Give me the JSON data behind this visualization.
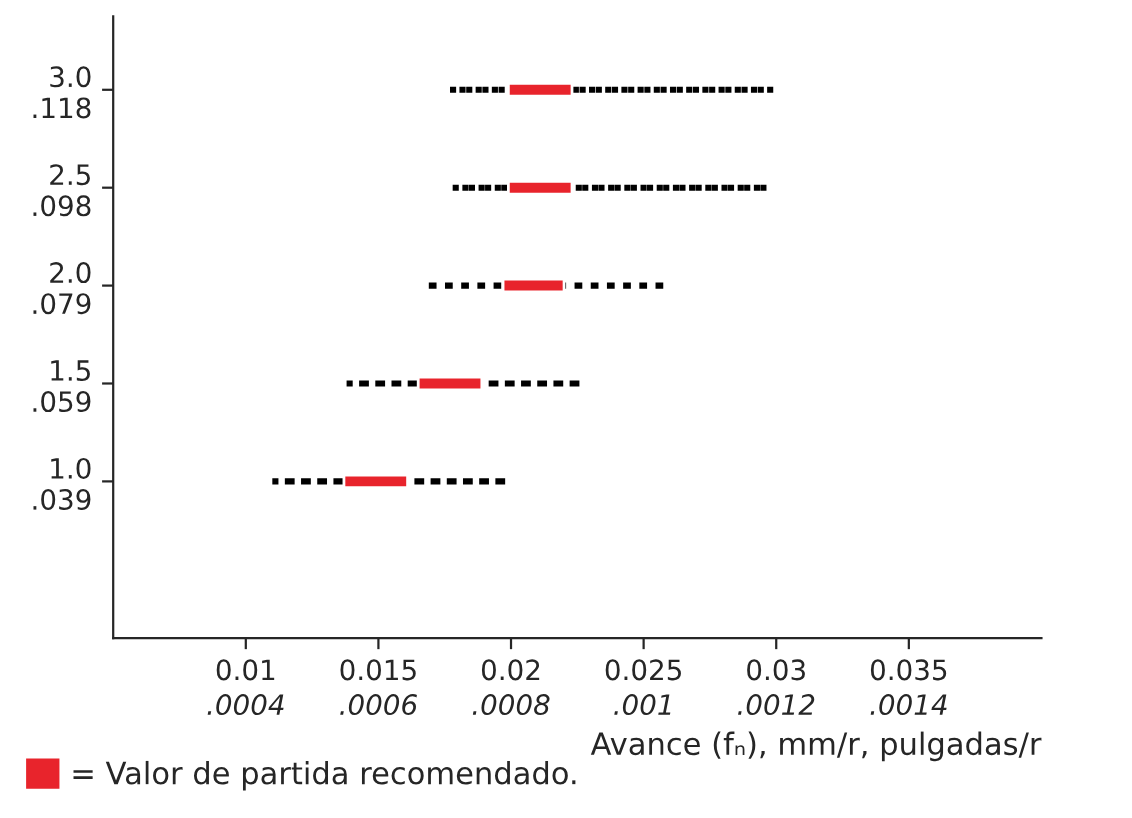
{
  "chart_data": {
    "type": "bar",
    "orientation": "horizontal",
    "categories": [
      "3.0\n.118",
      "2.5\n.098",
      "2.0\n.079",
      "1.5\n.059",
      "1.0\n.039"
    ],
    "series": [
      {
        "color": "#000000",
        "line_style": "dotted",
        "base": [
          0.0177,
          0.0178,
          0.0169,
          0.0138,
          0.011
        ],
        "values": [
          0.0122,
          0.0119,
          0.009,
          0.0089,
          0.0089
        ]
      },
      {
        "name": "= Valor de partida recomendado.",
        "color": "#e8242c",
        "base": [
          0.0199,
          0.0199,
          0.0197,
          0.0165,
          0.0137
        ],
        "values": [
          0.0024,
          0.0024,
          0.0023,
          0.0024,
          0.0024
        ]
      }
    ],
    "xlabel": "Avance (fₙ), mm/r, pulgadas/r",
    "xlim": [
      0.005,
      0.04
    ],
    "xticks": [
      0.01,
      0.015,
      0.02,
      0.025,
      0.03,
      0.035
    ],
    "x2lim": [
      0.0002,
      0.0016
    ],
    "x2ticks": [
      {
        "value": 0.0004,
        "label": ".0004"
      },
      {
        "value": 0.0006,
        "label": ".0006"
      },
      {
        "value": 0.0008,
        "label": ".0008"
      },
      {
        "value": 0.001,
        "label": ".001"
      },
      {
        "value": 0.0012,
        "label": ".0012"
      },
      {
        "value": 0.0014,
        "label": ".0014"
      }
    ],
    "legend": "bottom left",
    "grid": false
  }
}
